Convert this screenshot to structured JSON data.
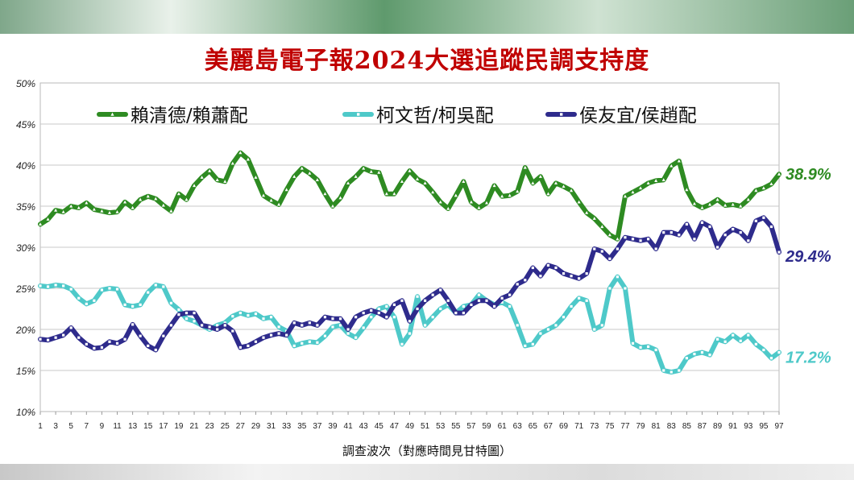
{
  "chart_data": {
    "type": "line",
    "title": "美麗島電子報2024大選追蹤民調支持度",
    "xlabel": "調查波次（對應時間見甘特圖）",
    "ylabel": "",
    "ylim": [
      10,
      50
    ],
    "yticks": [
      10,
      15,
      20,
      25,
      30,
      35,
      40,
      45,
      50
    ],
    "ytick_labels": [
      "10%",
      "15%",
      "20%",
      "25%",
      "30%",
      "35%",
      "40%",
      "45%",
      "50%"
    ],
    "xlim": [
      1,
      97
    ],
    "xtick_labels": [
      "1",
      "3",
      "5",
      "7",
      "9",
      "11",
      "13",
      "15",
      "17",
      "19",
      "21",
      "23",
      "25",
      "27",
      "29",
      "31",
      "33",
      "35",
      "37",
      "39",
      "41",
      "43",
      "45",
      "47",
      "49",
      "51",
      "53",
      "55",
      "57",
      "59",
      "61",
      "63",
      "65",
      "67",
      "69",
      "71",
      "73",
      "75",
      "77",
      "79",
      "81",
      "83",
      "85",
      "87",
      "89",
      "91",
      "93",
      "95",
      "97"
    ],
    "grid": true,
    "legend_placement": "top",
    "series": [
      {
        "name": "賴清德/賴蕭配",
        "color": "#2e8b22",
        "end_label": "38.9%",
        "values": [
          32.8,
          33.4,
          34.5,
          34.3,
          35.0,
          34.8,
          35.4,
          34.6,
          34.4,
          34.2,
          34.3,
          35.5,
          34.8,
          35.8,
          36.2,
          35.9,
          35.1,
          34.4,
          36.5,
          35.8,
          37.5,
          38.5,
          39.3,
          38.2,
          38.0,
          40.2,
          41.5,
          40.7,
          38.5,
          36.3,
          35.7,
          35.2,
          37.0,
          38.6,
          39.6,
          39.0,
          38.2,
          36.5,
          35.0,
          36.0,
          37.8,
          38.6,
          39.6,
          39.2,
          39.1,
          36.5,
          36.5,
          38.0,
          39.3,
          38.3,
          37.8,
          36.7,
          35.5,
          34.7,
          36.3,
          38.0,
          35.5,
          34.8,
          35.4,
          37.5,
          36.2,
          36.3,
          36.8,
          39.7,
          37.8,
          38.6,
          36.5,
          37.8,
          37.4,
          36.9,
          35.5,
          34.2,
          33.5,
          32.5,
          31.5,
          31.0,
          36.2,
          36.7,
          37.2,
          37.8,
          38.1,
          38.2,
          39.9,
          40.5,
          37.0,
          35.3,
          34.8,
          35.2,
          35.8,
          35.1,
          35.2,
          35.0,
          35.8,
          36.9,
          37.2,
          37.7,
          38.9
        ]
      },
      {
        "name": "柯文哲/柯吳配",
        "color": "#4ec9c9",
        "end_label": "17.2%",
        "values": [
          25.3,
          25.2,
          25.4,
          25.3,
          24.9,
          23.8,
          23.1,
          23.5,
          24.8,
          25.0,
          24.9,
          23.0,
          22.8,
          23.0,
          24.5,
          25.4,
          25.2,
          23.2,
          22.4,
          21.3,
          21.0,
          20.5,
          20.0,
          20.5,
          20.8,
          21.6,
          22.0,
          21.7,
          21.9,
          21.3,
          21.5,
          20.3,
          19.8,
          18.0,
          18.3,
          18.5,
          18.4,
          19.2,
          20.3,
          20.5,
          19.5,
          19.0,
          20.2,
          21.5,
          22.5,
          22.8,
          21.5,
          18.2,
          19.5,
          24.0,
          20.5,
          21.5,
          22.5,
          23.0,
          22.0,
          22.8,
          23.0,
          24.2,
          23.5,
          23.0,
          23.3,
          22.8,
          20.5,
          18.0,
          18.2,
          19.5,
          20.0,
          20.5,
          21.5,
          22.8,
          23.8,
          23.5,
          20.0,
          20.5,
          25.0,
          26.4,
          25.0,
          18.3,
          17.8,
          17.9,
          17.5,
          15.0,
          14.8,
          15.0,
          16.5,
          17.0,
          17.2,
          16.9,
          18.8,
          18.5,
          19.3,
          18.6,
          19.3,
          18.2,
          17.5,
          16.5,
          17.2
        ]
      },
      {
        "name": "侯友宜/侯趙配",
        "color": "#2e2b8c",
        "end_label": "29.4%",
        "values": [
          18.8,
          18.7,
          19.0,
          19.3,
          20.2,
          19.0,
          18.2,
          17.7,
          17.8,
          18.5,
          18.3,
          18.8,
          20.6,
          19.2,
          18.0,
          17.5,
          19.2,
          20.5,
          21.8,
          22.0,
          22.0,
          20.5,
          20.3,
          20.0,
          20.5,
          19.8,
          17.8,
          18.0,
          18.5,
          19.0,
          19.3,
          19.5,
          19.3,
          20.8,
          20.5,
          20.8,
          20.5,
          21.5,
          21.3,
          21.3,
          20.0,
          21.5,
          22.0,
          22.3,
          22.0,
          21.5,
          23.0,
          23.5,
          21.0,
          22.5,
          23.5,
          24.2,
          24.8,
          23.5,
          22.0,
          22.0,
          23.0,
          23.5,
          23.5,
          22.8,
          23.8,
          24.2,
          25.5,
          26.0,
          27.5,
          26.5,
          27.8,
          27.5,
          26.8,
          26.5,
          26.2,
          26.8,
          29.8,
          29.5,
          28.6,
          29.8,
          31.2,
          31.0,
          30.8,
          31.0,
          29.8,
          31.8,
          31.8,
          31.5,
          32.8,
          31.0,
          33.0,
          32.5,
          30.0,
          31.5,
          32.2,
          31.8,
          30.8,
          33.2,
          33.6,
          32.5,
          29.4
        ]
      }
    ]
  }
}
